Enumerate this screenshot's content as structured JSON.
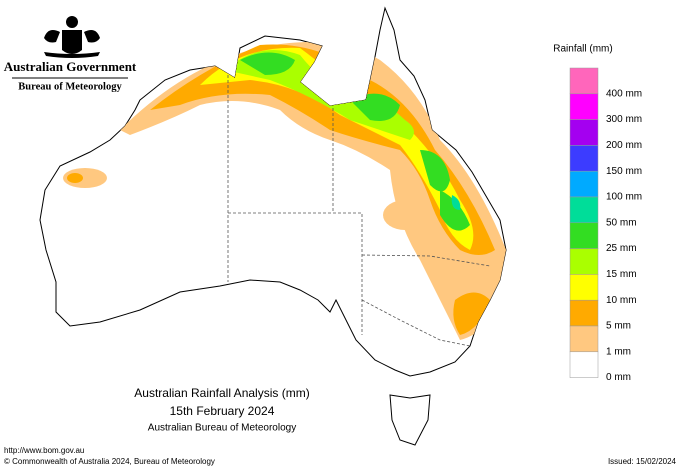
{
  "header": {
    "government": "Australian Government",
    "agency": "Bureau of Meteorology"
  },
  "legend": {
    "title": "Rainfall (mm)",
    "items": [
      {
        "label": "400 mm",
        "color": "#ff66bb"
      },
      {
        "label": "300 mm",
        "color": "#ff00ff"
      },
      {
        "label": "200 mm",
        "color": "#a400f0"
      },
      {
        "label": "150 mm",
        "color": "#3c3cff"
      },
      {
        "label": "100 mm",
        "color": "#00aaff"
      },
      {
        "label": "50 mm",
        "color": "#00dd99"
      },
      {
        "label": "25 mm",
        "color": "#33dd22"
      },
      {
        "label": "15 mm",
        "color": "#aaff00"
      },
      {
        "label": "10 mm",
        "color": "#ffff00"
      },
      {
        "label": "5 mm",
        "color": "#ffaa00"
      },
      {
        "label": "1 mm",
        "color": "#ffc880"
      },
      {
        "label": "0 mm",
        "color": "#ffffff"
      }
    ]
  },
  "caption": {
    "line1": "Australian Rainfall Analysis (mm)",
    "line2": "15th February 2024",
    "line3": "Australian Bureau of Meteorology"
  },
  "footer": {
    "url": "http://www.bom.gov.au",
    "copyright": "© Commonwealth of Australia 2024, Bureau of Meteorology",
    "issued": "Issued: 15/02/2024"
  }
}
